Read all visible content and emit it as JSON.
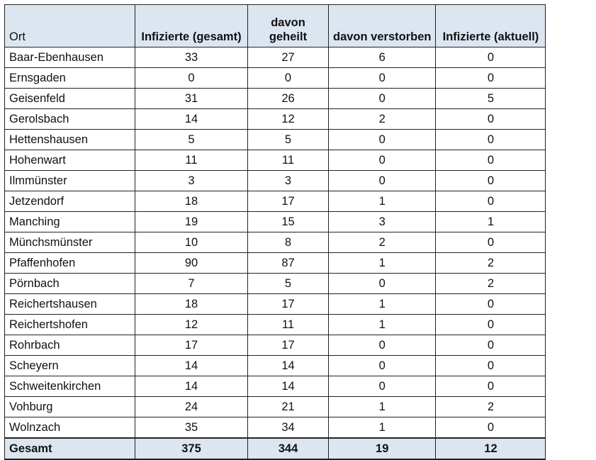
{
  "table": {
    "headers": {
      "ort": "Ort",
      "infizierte_gesamt": "Infizierte (gesamt)",
      "davon_geheilt_line1": "davon",
      "davon_geheilt_line2": "geheilt",
      "davon_verstorben": "davon verstorben",
      "infizierte_aktuell": "Infizierte (aktuell)"
    },
    "rows": [
      {
        "ort": "Baar-Ebenhausen",
        "gesamt": "33",
        "geheilt": "27",
        "verstorben": "6",
        "aktuell": "0"
      },
      {
        "ort": "Ernsgaden",
        "gesamt": "0",
        "geheilt": "0",
        "verstorben": "0",
        "aktuell": "0"
      },
      {
        "ort": "Geisenfeld",
        "gesamt": "31",
        "geheilt": "26",
        "verstorben": "0",
        "aktuell": "5"
      },
      {
        "ort": "Gerolsbach",
        "gesamt": "14",
        "geheilt": "12",
        "verstorben": "2",
        "aktuell": "0"
      },
      {
        "ort": "Hettenshausen",
        "gesamt": "5",
        "geheilt": "5",
        "verstorben": "0",
        "aktuell": "0"
      },
      {
        "ort": "Hohenwart",
        "gesamt": "11",
        "geheilt": "11",
        "verstorben": "0",
        "aktuell": "0"
      },
      {
        "ort": "Ilmmünster",
        "gesamt": "3",
        "geheilt": "3",
        "verstorben": "0",
        "aktuell": "0"
      },
      {
        "ort": "Jetzendorf",
        "gesamt": "18",
        "geheilt": "17",
        "verstorben": "1",
        "aktuell": "0"
      },
      {
        "ort": "Manching",
        "gesamt": "19",
        "geheilt": "15",
        "verstorben": "3",
        "aktuell": "1"
      },
      {
        "ort": "Münchsmünster",
        "gesamt": "10",
        "geheilt": "8",
        "verstorben": "2",
        "aktuell": "0"
      },
      {
        "ort": "Pfaffenhofen",
        "gesamt": "90",
        "geheilt": "87",
        "verstorben": "1",
        "aktuell": "2"
      },
      {
        "ort": "Pörnbach",
        "gesamt": "7",
        "geheilt": "5",
        "verstorben": "0",
        "aktuell": "2"
      },
      {
        "ort": "Reichertshausen",
        "gesamt": "18",
        "geheilt": "17",
        "verstorben": "1",
        "aktuell": "0"
      },
      {
        "ort": "Reichertshofen",
        "gesamt": "12",
        "geheilt": "11",
        "verstorben": "1",
        "aktuell": "0"
      },
      {
        "ort": "Rohrbach",
        "gesamt": "17",
        "geheilt": "17",
        "verstorben": "0",
        "aktuell": "0"
      },
      {
        "ort": "Scheyern",
        "gesamt": "14",
        "geheilt": "14",
        "verstorben": "0",
        "aktuell": "0"
      },
      {
        "ort": "Schweitenkirchen",
        "gesamt": "14",
        "geheilt": "14",
        "verstorben": "0",
        "aktuell": "0"
      },
      {
        "ort": "Vohburg",
        "gesamt": "24",
        "geheilt": "21",
        "verstorben": "1",
        "aktuell": "2"
      },
      {
        "ort": "Wolnzach",
        "gesamt": "35",
        "geheilt": "34",
        "verstorben": "1",
        "aktuell": "0"
      }
    ],
    "total": {
      "ort": "Gesamt",
      "gesamt": "375",
      "geheilt": "344",
      "verstorben": "19",
      "aktuell": "12"
    },
    "colors": {
      "header_bg": "#dce6f1",
      "border": "#222222"
    }
  }
}
